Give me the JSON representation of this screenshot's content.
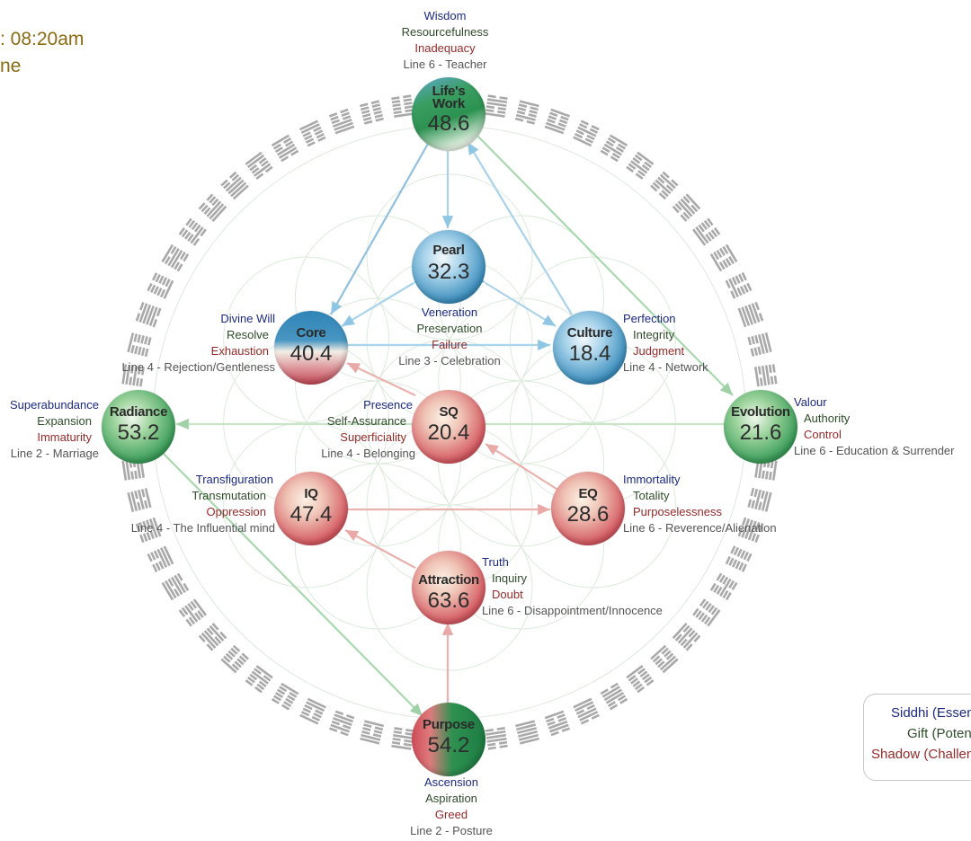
{
  "header": {
    "line1": ": 08:20am",
    "line2": "ne"
  },
  "legend": {
    "siddhi": "Siddhi (Essen",
    "gift": "Gift (Poten",
    "shadow": "Shadow (Challen"
  },
  "colors": {
    "siddhi": "#1c2a80",
    "gift": "#2f4d2a",
    "shadow": "#962a2a",
    "line": "#555555",
    "header": "#8a6a12"
  },
  "spheres": {
    "lifes_work": {
      "name1": "Life's",
      "name2": "Work",
      "value": "48.6",
      "siddhi": "Wisdom",
      "gift": "Resourcefulness",
      "shadow": "Inadequacy",
      "line": "Line 6 - Teacher"
    },
    "pearl": {
      "name": "Pearl",
      "value": "32.3",
      "siddhi": "Veneration",
      "gift": "Preservation",
      "shadow": "Failure",
      "line": "Line 3 - Celebration"
    },
    "core": {
      "name": "Core",
      "value": "40.4",
      "siddhi": "Divine Will",
      "gift": "Resolve",
      "shadow": "Exhaustion",
      "line": "Line 4 - Rejection/Gentleness"
    },
    "culture": {
      "name": "Culture",
      "value": "18.4",
      "siddhi": "Perfection",
      "gift": "Integrity",
      "shadow": "Judgment",
      "line": "Line 4 - Network"
    },
    "radiance": {
      "name": "Radiance",
      "value": "53.2",
      "siddhi": "Superabundance",
      "gift": "Expansion",
      "shadow": "Immaturity",
      "line": "Line 2 - Marriage"
    },
    "sq": {
      "name": "SQ",
      "value": "20.4",
      "siddhi": "Presence",
      "gift": "Self-Assurance",
      "shadow": "Superficiality",
      "line": "Line 4 - Belonging"
    },
    "evolution": {
      "name": "Evolution",
      "value": "21.6",
      "siddhi": "Valour",
      "gift": "Authority",
      "shadow": "Control",
      "line": "Line 6 - Education & Surrender"
    },
    "iq": {
      "name": "IQ",
      "value": "47.4",
      "siddhi": "Transfiguration",
      "gift": "Transmutation",
      "shadow": "Oppression",
      "line": "Line 4 - The Influential mind"
    },
    "eq": {
      "name": "EQ",
      "value": "28.6",
      "siddhi": "Immortality",
      "gift": "Totality",
      "shadow": "Purposelessness",
      "line": "Line 6 - Reverence/Alienation"
    },
    "attraction": {
      "name": "Attraction",
      "value": "63.6",
      "siddhi": "Truth",
      "gift": "Inquiry",
      "shadow": "Doubt",
      "line": "Line 6 - Disappointment/Innocence"
    },
    "purpose": {
      "name": "Purpose",
      "value": "54.2",
      "siddhi": "Ascension",
      "gift": "Aspiration",
      "shadow": "Greed",
      "line": "Line 2 - Posture"
    }
  }
}
